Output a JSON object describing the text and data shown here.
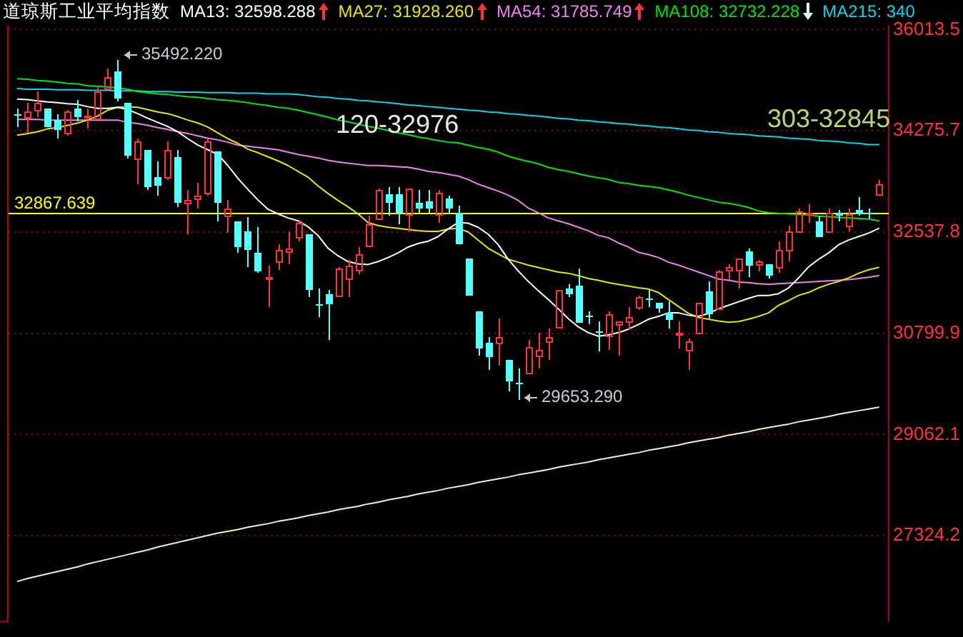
{
  "chart_data": {
    "type": "candlestick",
    "title": "道琼斯工业平均指数",
    "categories": [
      null,
      null,
      null,
      null,
      null,
      null,
      null,
      null,
      null,
      null,
      null,
      null,
      null,
      null,
      null,
      null,
      null,
      null,
      null,
      null,
      null,
      null,
      null,
      null,
      null,
      null,
      null,
      null,
      null,
      null,
      null,
      null,
      null,
      null,
      null,
      null,
      null,
      null,
      null,
      null,
      null,
      null,
      null,
      null,
      null,
      null,
      null,
      null,
      null,
      null,
      null,
      null,
      null,
      null,
      null,
      null,
      null,
      null,
      null,
      null,
      null,
      null,
      null,
      null,
      null,
      null,
      null,
      null,
      null,
      null,
      null,
      null,
      null,
      null,
      null,
      null,
      null,
      null,
      null,
      null,
      null,
      null,
      null,
      null,
      null,
      null,
      null
    ],
    "ohlc": [
      [
        34560,
        34660,
        34330,
        34530
      ],
      [
        34500,
        34750,
        34250,
        34620
      ],
      [
        34630,
        34950,
        34520,
        34750
      ],
      [
        34660,
        34660,
        34340,
        34340
      ],
      [
        34460,
        34560,
        34150,
        34280
      ],
      [
        34240,
        34630,
        34180,
        34600
      ],
      [
        34660,
        34810,
        34440,
        34500
      ],
      [
        34510,
        34660,
        34320,
        34530
      ],
      [
        34480,
        35030,
        34460,
        34940
      ],
      [
        35010,
        35340,
        34970,
        35200
      ],
      [
        35300,
        35492.22,
        34770,
        34820
      ],
      [
        34750,
        34750,
        33810,
        33850
      ],
      [
        33790,
        34140,
        33360,
        34090
      ],
      [
        33950,
        33950,
        33270,
        33300
      ],
      [
        33480,
        33750,
        33160,
        33340
      ],
      [
        33480,
        34090,
        33420,
        33950
      ],
      [
        33830,
        33950,
        32960,
        33030
      ],
      [
        33040,
        33260,
        32500,
        33090
      ],
      [
        33120,
        33380,
        32950,
        33160
      ],
      [
        33220,
        34150,
        33170,
        34090
      ],
      [
        33910,
        33910,
        32730,
        33050
      ],
      [
        32830,
        33090,
        32520,
        32950
      ],
      [
        32730,
        32730,
        32180,
        32290
      ],
      [
        32550,
        32790,
        31930,
        32220
      ],
      [
        32170,
        32620,
        31840,
        31870
      ],
      [
        31750,
        31950,
        31260,
        31770
      ],
      [
        32030,
        32320,
        31890,
        32240
      ],
      [
        32200,
        32550,
        31980,
        32260
      ],
      [
        32460,
        32730,
        32380,
        32700
      ],
      [
        32500,
        32500,
        31420,
        31540
      ],
      [
        31310,
        31570,
        31070,
        31290
      ],
      [
        31480,
        31540,
        30690,
        31310
      ],
      [
        31440,
        31930,
        31420,
        31910
      ],
      [
        31750,
        32070,
        31420,
        31970
      ],
      [
        31890,
        32280,
        31810,
        32150
      ],
      [
        32300,
        32810,
        32300,
        32670
      ],
      [
        32780,
        33280,
        32780,
        33260
      ],
      [
        33190,
        33300,
        32810,
        33030
      ],
      [
        33190,
        33300,
        32660,
        32870
      ],
      [
        32850,
        33280,
        32560,
        33280
      ],
      [
        33030,
        33260,
        32870,
        32950
      ],
      [
        33070,
        33260,
        32870,
        32950
      ],
      [
        32850,
        33260,
        32690,
        33220
      ],
      [
        33120,
        33170,
        32870,
        32950
      ],
      [
        32860,
        33000,
        32320,
        32320
      ],
      [
        32090,
        32090,
        31440,
        31440
      ],
      [
        31180,
        31180,
        30420,
        30550
      ],
      [
        30640,
        30740,
        30180,
        30400
      ],
      [
        30630,
        31050,
        30240,
        30730
      ],
      [
        30350,
        30350,
        29800,
        29970
      ],
      [
        29960,
        30200,
        29653.29,
        29940
      ],
      [
        30110,
        30690,
        30110,
        30560
      ],
      [
        30420,
        30810,
        30200,
        30510
      ],
      [
        30650,
        30870,
        30340,
        30730
      ],
      [
        30910,
        31540,
        30890,
        31540
      ],
      [
        31580,
        31640,
        31420,
        31480
      ],
      [
        31610,
        31910,
        30970,
        30990
      ],
      [
        31100,
        31180,
        30950,
        31090
      ],
      [
        30840,
        31010,
        30480,
        30820
      ],
      [
        30770,
        31180,
        30520,
        31130
      ],
      [
        30950,
        31000,
        30410,
        31000
      ],
      [
        31000,
        31260,
        30850,
        31080
      ],
      [
        31240,
        31440,
        31190,
        31420
      ],
      [
        31400,
        31540,
        31260,
        31390
      ],
      [
        31320,
        31320,
        31160,
        31220
      ],
      [
        31160,
        31350,
        30890,
        31030
      ],
      [
        30800,
        31010,
        30550,
        30820
      ],
      [
        30510,
        30710,
        30180,
        30660
      ],
      [
        30820,
        31320,
        30820,
        31320
      ],
      [
        31530,
        31690,
        31050,
        31130
      ],
      [
        31220,
        31890,
        31200,
        31870
      ],
      [
        31890,
        31990,
        31710,
        31930
      ],
      [
        31890,
        32090,
        31580,
        32090
      ],
      [
        32210,
        32260,
        31770,
        31950
      ],
      [
        31990,
        32060,
        31870,
        32030
      ],
      [
        31990,
        31990,
        31750,
        31800
      ],
      [
        31930,
        32370,
        31850,
        32220
      ],
      [
        32240,
        32640,
        32030,
        32560
      ],
      [
        32560,
        32950,
        32560,
        32890
      ],
      [
        32840,
        33010,
        32690,
        32860
      ],
      [
        32730,
        32810,
        32440,
        32440
      ],
      [
        32560,
        32930,
        32560,
        32860
      ],
      [
        32860,
        32910,
        32710,
        32810
      ],
      [
        32640,
        32930,
        32540,
        32850
      ],
      [
        32910,
        33130,
        32810,
        32850
      ],
      [
        32860,
        32930,
        32770,
        32840
      ],
      [
        33190,
        33420,
        33170,
        33350
      ]
    ],
    "colors": [
      "#54ffff",
      "#ff3232",
      "#ff3232",
      "#54ffff",
      "#54ffff",
      "#ff3232",
      "#54ffff",
      "#ff3232",
      "#ff3232",
      "#ff3232",
      "#54ffff",
      "#54ffff",
      "#ff3232",
      "#54ffff",
      "#54ffff",
      "#ff3232",
      "#54ffff",
      "#ff3232",
      "#ff3232",
      "#ff3232",
      "#54ffff",
      "#ff3232",
      "#54ffff",
      "#54ffff",
      "#54ffff",
      "#ff3232",
      "#ff3232",
      "#ff3232",
      "#ff3232",
      "#54ffff",
      "#54ffff",
      "#54ffff",
      "#ff3232",
      "#ff3232",
      "#ff3232",
      "#ff3232",
      "#ff3232",
      "#54ffff",
      "#54ffff",
      "#ff3232",
      "#54ffff",
      "#54ffff",
      "#ff3232",
      "#54ffff",
      "#54ffff",
      "#54ffff",
      "#54ffff",
      "#54ffff",
      "#ff3232",
      "#54ffff",
      "#54ffff",
      "#ff3232",
      "#ff3232",
      "#ff3232",
      "#ff3232",
      "#54ffff",
      "#54ffff",
      "#54ffff",
      "#54ffff",
      "#ff3232",
      "#ff3232",
      "#ff3232",
      "#ff3232",
      "#54ffff",
      "#54ffff",
      "#54ffff",
      "#ff3232",
      "#ff3232",
      "#ff3232",
      "#54ffff",
      "#ff3232",
      "#ff3232",
      "#ff3232",
      "#54ffff",
      "#ff3232",
      "#54ffff",
      "#ff3232",
      "#ff3232",
      "#ff3232",
      "#ff3232",
      "#54ffff",
      "#ff3232",
      "#54ffff",
      "#ff3232",
      "#54ffff",
      "#54ffff",
      "#ff3232"
    ],
    "series": [
      {
        "type": "line",
        "name": "MA13: 32598.288",
        "color": "#ffffff",
        "values": [
          34820,
          34810,
          34790,
          34770,
          34760,
          34740,
          34730,
          34690,
          34660,
          34660,
          34680,
          34640,
          34570,
          34490,
          34420,
          34350,
          34260,
          34140,
          34030,
          33950,
          33870,
          33680,
          33460,
          33270,
          33090,
          32930,
          32850,
          32780,
          32730,
          32630,
          32480,
          32260,
          32130,
          32030,
          31990,
          31980,
          32030,
          32100,
          32180,
          32280,
          32340,
          32380,
          32460,
          32590,
          32700,
          32690,
          32620,
          32500,
          32320,
          32070,
          31870,
          31690,
          31530,
          31380,
          31220,
          31050,
          30910,
          30810,
          30750,
          30770,
          30810,
          30870,
          30950,
          31040,
          31090,
          31150,
          31150,
          31110,
          31090,
          31140,
          31220,
          31280,
          31340,
          31400,
          31450,
          31450,
          31480,
          31580,
          31750,
          31940,
          32070,
          32180,
          32320,
          32400,
          32460,
          32520,
          32600
        ]
      },
      {
        "type": "line",
        "name": "MA27: 31928.260",
        "color": "#e6e600",
        "values": [
          34200,
          34230,
          34260,
          34310,
          34330,
          34370,
          34410,
          34460,
          34530,
          34630,
          34680,
          34690,
          34680,
          34640,
          34600,
          34570,
          34520,
          34460,
          34410,
          34340,
          34240,
          34140,
          34060,
          33960,
          33900,
          33830,
          33760,
          33680,
          33580,
          33480,
          33330,
          33200,
          33080,
          32970,
          32850,
          32700,
          32650,
          32620,
          32600,
          32580,
          32560,
          32550,
          32550,
          32590,
          32600,
          32540,
          32400,
          32260,
          32160,
          32070,
          32020,
          31970,
          31930,
          31890,
          31850,
          31830,
          31790,
          31740,
          31710,
          31670,
          31640,
          31610,
          31580,
          31560,
          31500,
          31380,
          31260,
          31140,
          31070,
          31040,
          31010,
          30990,
          31000,
          31040,
          31090,
          31150,
          31280,
          31360,
          31450,
          31500,
          31580,
          31640,
          31690,
          31750,
          31830,
          31890,
          31930
        ]
      },
      {
        "type": "line",
        "name": "MA54: 31785.749",
        "color": "#f080f0",
        "values": [
          34470,
          34470,
          34470,
          34460,
          34460,
          34460,
          34460,
          34460,
          34460,
          34460,
          34460,
          34420,
          34400,
          34370,
          34330,
          34300,
          34260,
          34230,
          34190,
          34150,
          34120,
          34080,
          34030,
          34010,
          33990,
          33970,
          33950,
          33910,
          33870,
          33840,
          33810,
          33770,
          33740,
          33720,
          33700,
          33680,
          33680,
          33670,
          33660,
          33650,
          33620,
          33580,
          33560,
          33530,
          33500,
          33440,
          33360,
          33300,
          33240,
          33170,
          33080,
          32950,
          32870,
          32780,
          32730,
          32680,
          32620,
          32560,
          32480,
          32440,
          32350,
          32280,
          32190,
          32150,
          32100,
          32020,
          31970,
          31910,
          31850,
          31790,
          31730,
          31710,
          31680,
          31670,
          31650,
          31640,
          31650,
          31660,
          31670,
          31680,
          31690,
          31700,
          31710,
          31720,
          31740,
          31760,
          31790
        ]
      },
      {
        "type": "line",
        "name": "MA108: 32732.228",
        "color": "#00e600",
        "values": [
          35170,
          35160,
          35140,
          35130,
          35110,
          35090,
          35080,
          35050,
          35040,
          35030,
          35010,
          34990,
          34950,
          34930,
          34910,
          34900,
          34880,
          34860,
          34850,
          34830,
          34810,
          34800,
          34780,
          34760,
          34730,
          34710,
          34680,
          34660,
          34630,
          34590,
          34550,
          34510,
          34460,
          34430,
          34390,
          34350,
          34320,
          34280,
          34240,
          34210,
          34170,
          34140,
          34110,
          34080,
          34070,
          34030,
          33990,
          33960,
          33910,
          33840,
          33790,
          33750,
          33710,
          33650,
          33610,
          33580,
          33540,
          33500,
          33470,
          33440,
          33390,
          33370,
          33340,
          33320,
          33300,
          33260,
          33220,
          33170,
          33130,
          33090,
          33050,
          33030,
          33000,
          32960,
          32900,
          32870,
          32860,
          32850,
          32840,
          32830,
          32810,
          32800,
          32790,
          32780,
          32770,
          32760,
          32730
        ]
      },
      {
        "type": "line",
        "name": "MA215: 340",
        "color": "#00d8f0",
        "values": [
          35000,
          34990,
          34990,
          34990,
          34980,
          34980,
          34980,
          34970,
          34970,
          34970,
          34960,
          34960,
          34960,
          34950,
          34950,
          34950,
          34940,
          34940,
          34940,
          34930,
          34930,
          34930,
          34920,
          34920,
          34920,
          34910,
          34910,
          34910,
          34900,
          34880,
          34860,
          34850,
          34830,
          34820,
          34800,
          34790,
          34770,
          34760,
          34740,
          34720,
          34710,
          34690,
          34680,
          34660,
          34650,
          34630,
          34620,
          34600,
          34590,
          34570,
          34560,
          34540,
          34530,
          34510,
          34490,
          34480,
          34460,
          34450,
          34430,
          34420,
          34400,
          34390,
          34370,
          34360,
          34340,
          34330,
          34310,
          34290,
          34280,
          34260,
          34250,
          34230,
          34220,
          34210,
          34190,
          34180,
          34170,
          34150,
          34140,
          34130,
          34110,
          34100,
          34090,
          34070,
          34060,
          34040,
          34040
        ]
      },
      {
        "type": "line",
        "color": "#f0f0c0",
        "values": [
          26540,
          26590,
          26630,
          26670,
          26710,
          26750,
          26790,
          26840,
          26880,
          26920,
          26960,
          27000,
          27040,
          27080,
          27130,
          27170,
          27210,
          27250,
          27290,
          27330,
          27370,
          27400,
          27430,
          27470,
          27500,
          27530,
          27570,
          27600,
          27630,
          27670,
          27700,
          27730,
          27770,
          27800,
          27830,
          27870,
          27900,
          27940,
          27970,
          28000,
          28040,
          28070,
          28100,
          28140,
          28170,
          28200,
          28240,
          28270,
          28300,
          28330,
          28370,
          28400,
          28430,
          28460,
          28500,
          28530,
          28560,
          28590,
          28630,
          28660,
          28690,
          28720,
          28750,
          28790,
          28820,
          28850,
          28880,
          28920,
          28950,
          28980,
          29010,
          29050,
          29080,
          29110,
          29150,
          29180,
          29210,
          29240,
          29280,
          29310,
          29340,
          29370,
          29410,
          29440,
          29470,
          29500,
          29530
        ]
      }
    ],
    "ylim": [
      25850,
      36080
    ],
    "yticks": [
      27324.2,
      29062.1,
      30799.9,
      32537.8,
      34275.7,
      36013.5
    ],
    "grid": "y",
    "legend": "top",
    "tick_labels": "y",
    "ref_lines": [
      {
        "axis": "y",
        "value": 32867.639,
        "label": "32867.639",
        "color": "#ffff00"
      }
    ],
    "annotations": [
      "35492.220",
      "29653.290",
      "120-32976",
      "303-32845"
    ]
  }
}
